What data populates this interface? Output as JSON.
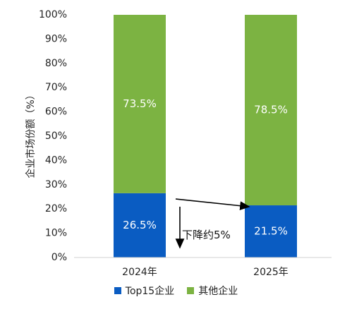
{
  "chart_data": {
    "type": "bar",
    "stacked": true,
    "categories": [
      "2024年",
      "2025年"
    ],
    "series": [
      {
        "name": "Top15企业",
        "values": [
          26.5,
          21.5
        ],
        "color": "#0a5cc2",
        "labels": [
          "26.5%",
          "21.5%"
        ]
      },
      {
        "name": "其他企业",
        "values": [
          73.5,
          78.5
        ],
        "color": "#7cb342",
        "labels": [
          "73.5%",
          "78.5%"
        ]
      }
    ],
    "ylabel": "企业市场份额（%）",
    "ylim": [
      0,
      100
    ],
    "yticks": [
      "0%",
      "10%",
      "20%",
      "30%",
      "40%",
      "50%",
      "60%",
      "70%",
      "80%",
      "90%",
      "100%"
    ],
    "grid": false,
    "legend": "bottom",
    "annotation": "下降约5%"
  }
}
